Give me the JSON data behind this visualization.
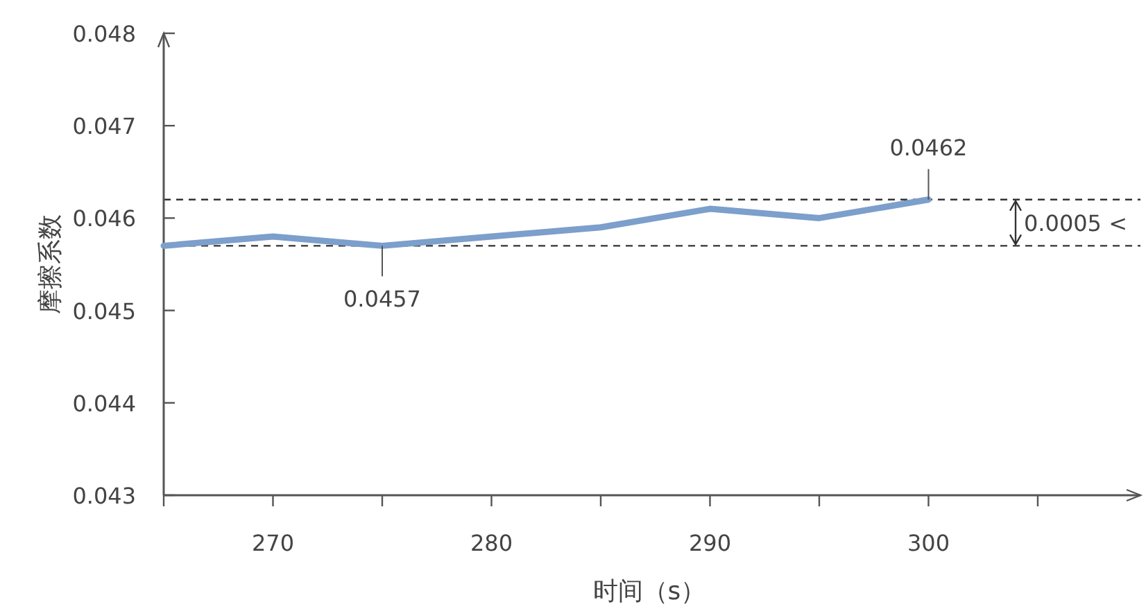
{
  "chart_data": {
    "type": "line",
    "xlabel": "时间（s）",
    "ylabel": "摩擦系数",
    "x": [
      265,
      270,
      275,
      280,
      285,
      290,
      295,
      300
    ],
    "series": [
      {
        "color": "#7c9fcb",
        "values": [
          0.0457,
          0.0458,
          0.0457,
          0.0458,
          0.0459,
          0.0461,
          0.046,
          0.0462
        ]
      }
    ],
    "xlim": [
      265,
      309.7
    ],
    "xticks": [
      {
        "value": 265,
        "label": null
      },
      270,
      {
        "value": 275,
        "label": null
      },
      280,
      {
        "value": 285,
        "label": null
      },
      290,
      {
        "value": 295,
        "label": null
      },
      300,
      {
        "value": 305,
        "label": null
      }
    ],
    "ylim": [
      0.043,
      0.048
    ],
    "yticks": [
      0.043,
      0.044,
      0.045,
      0.046,
      0.047,
      0.048
    ],
    "grid": false,
    "marker": "none",
    "line_style": "solid",
    "ref_lines": [
      {
        "axis": "y",
        "value": 0.0457,
        "color": "#333333",
        "line_style": "dashed"
      },
      {
        "axis": "y",
        "value": 0.0462,
        "color": "#333333",
        "line_style": "dashed"
      }
    ],
    "annotations": [
      {
        "text": "0.0457",
        "x": 275,
        "y": 0.0457
      },
      {
        "text": "0.0462",
        "x": 300,
        "y": 0.0462
      },
      "0.0005 <"
    ]
  }
}
